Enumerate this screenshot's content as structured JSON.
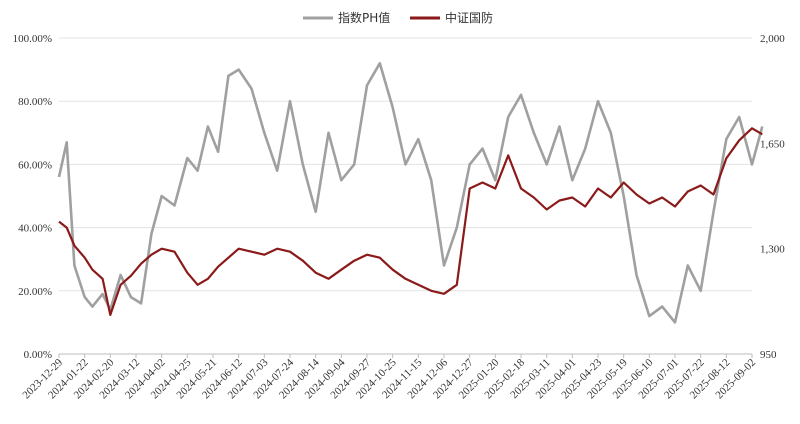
{
  "chart_data": {
    "type": "line",
    "title": "",
    "xlabel": "",
    "legend_position": "top-center",
    "grid": true,
    "x_tick_labels": [
      "2023-12-29",
      "2024-01-22",
      "2024-02-20",
      "2024-03-12",
      "2024-04-02",
      "2024-04-25",
      "2024-05-21",
      "2024-06-12",
      "2024-07-03",
      "2024-07-24",
      "2024-08-14",
      "2024-09-04",
      "2024-09-27",
      "2024-10-25",
      "2024-11-15",
      "2024-12-06",
      "2024-12-27",
      "2025-01-20",
      "2025-02-18",
      "2025-03-11",
      "2025-04-01",
      "2025-04-23",
      "2025-05-19",
      "2025-06-10",
      "2025-07-01",
      "2025-07-22",
      "2025-08-12",
      "2025-09-02"
    ],
    "y_left": {
      "ylim": [
        0,
        100
      ],
      "ticks": [
        "0.00%",
        "20.00%",
        "40.00%",
        "60.00%",
        "80.00%",
        "100.00%"
      ]
    },
    "y_right": {
      "ylim": [
        950,
        2000
      ],
      "ticks": [
        "950",
        "1,300",
        "1,650",
        "2,000"
      ]
    },
    "series": [
      {
        "name": "指数PH值",
        "color": "#a0a0a0",
        "axis": "left",
        "x": [
          0,
          0.3,
          0.6,
          1,
          1.3,
          1.7,
          2,
          2.4,
          2.8,
          3.2,
          3.6,
          4,
          4.5,
          5,
          5.4,
          5.8,
          6.2,
          6.6,
          7,
          7.5,
          8,
          8.5,
          9,
          9.5,
          10,
          10.5,
          11,
          11.5,
          12,
          12.5,
          13,
          13.5,
          14,
          14.5,
          15,
          15.5,
          16,
          16.5,
          17,
          17.5,
          18,
          18.5,
          19,
          19.5,
          20,
          20.5,
          21,
          21.5,
          22,
          22.5,
          23,
          23.5,
          24,
          24.5,
          25,
          25.5,
          26,
          26.5,
          27,
          27.4
        ],
        "values": [
          56,
          67,
          28,
          18,
          15,
          19,
          14,
          25,
          18,
          16,
          38,
          50,
          47,
          62,
          58,
          72,
          64,
          88,
          90,
          84,
          70,
          58,
          80,
          60,
          45,
          70,
          55,
          60,
          85,
          92,
          78,
          60,
          68,
          55,
          28,
          40,
          60,
          65,
          55,
          75,
          82,
          70,
          60,
          72,
          55,
          65,
          80,
          70,
          50,
          25,
          12,
          15,
          10,
          28,
          20,
          45,
          68,
          75,
          60,
          72
        ]
      },
      {
        "name": "中证国防",
        "color": "#8b1a1a",
        "axis": "right",
        "x": [
          0,
          0.3,
          0.6,
          1,
          1.3,
          1.7,
          2,
          2.4,
          2.8,
          3.2,
          3.6,
          4,
          4.5,
          5,
          5.4,
          5.8,
          6.2,
          6.6,
          7,
          7.5,
          8,
          8.5,
          9,
          9.5,
          10,
          10.5,
          11,
          11.5,
          12,
          12.5,
          13,
          13.5,
          14,
          14.5,
          15,
          15.5,
          16,
          16.5,
          17,
          17.5,
          18,
          18.5,
          19,
          19.5,
          20,
          20.5,
          21,
          21.5,
          22,
          22.5,
          23,
          23.5,
          24,
          24.5,
          25,
          25.5,
          26,
          26.5,
          27,
          27.4
        ],
        "values": [
          1390,
          1370,
          1310,
          1270,
          1230,
          1200,
          1080,
          1180,
          1210,
          1250,
          1280,
          1300,
          1290,
          1220,
          1180,
          1200,
          1240,
          1270,
          1300,
          1290,
          1280,
          1300,
          1290,
          1260,
          1220,
          1200,
          1230,
          1260,
          1280,
          1270,
          1230,
          1200,
          1180,
          1160,
          1150,
          1180,
          1500,
          1520,
          1500,
          1610,
          1500,
          1470,
          1430,
          1460,
          1470,
          1440,
          1500,
          1470,
          1520,
          1480,
          1450,
          1470,
          1440,
          1490,
          1510,
          1480,
          1600,
          1660,
          1700,
          1680
        ]
      }
    ]
  }
}
